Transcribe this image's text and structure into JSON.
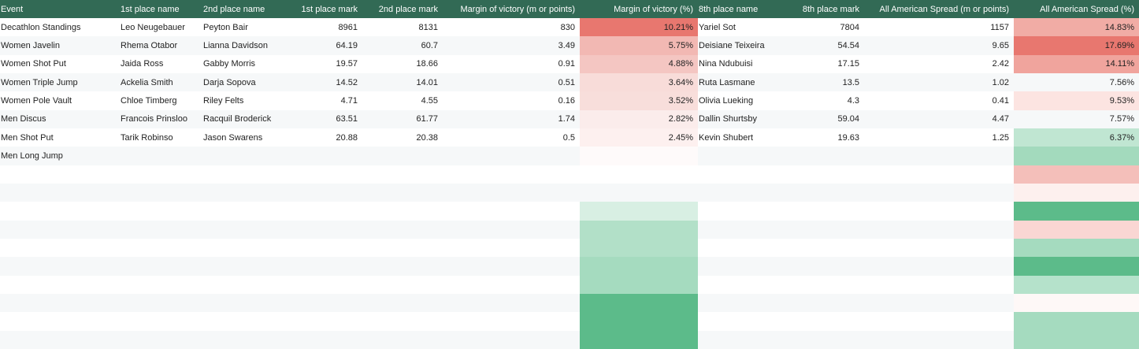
{
  "table": {
    "columns": [
      "Event",
      "1st place name",
      "2nd place name",
      "1st place mark",
      "2nd place mark",
      "Margin of victory (m or points)",
      "Margin of victory (%)",
      "8th place name",
      "8th place mark",
      "All American Spread (m or points)",
      "All American Spread (%)"
    ],
    "rows": [
      [
        "Decathlon Standings",
        "Leo Neugebauer",
        "Peyton Bair",
        "8961",
        "8131",
        "830",
        "10.21%",
        "Yariel Sot",
        "7804",
        "1157",
        "14.83%"
      ],
      [
        "Women Javelin",
        "Rhema Otabor",
        "Lianna Davidson",
        "64.19",
        "60.7",
        "3.49",
        "5.75%",
        "Deisiane Teixeira",
        "54.54",
        "9.65",
        "17.69%"
      ],
      [
        "Women Shot Put",
        "Jaida Ross",
        "Gabby Morris",
        "19.57",
        "18.66",
        "0.91",
        "4.88%",
        "Nina Ndubuisi",
        "17.15",
        "2.42",
        "14.11%"
      ],
      [
        "Women Triple Jump",
        "Ackelia Smith",
        "Darja Sopova",
        "14.52",
        "14.01",
        "0.51",
        "3.64%",
        "Ruta Lasmane",
        "13.5",
        "1.02",
        "7.56%"
      ],
      [
        "Women Pole Vault",
        "Chloe Timberg",
        "Riley Felts",
        "4.71",
        "4.55",
        "0.16",
        "3.52%",
        "Olivia Lueking",
        "4.3",
        "0.41",
        "9.53%"
      ],
      [
        "Men Discus",
        "Francois Prinsloo",
        "Racquil Broderick",
        "63.51",
        "61.77",
        "1.74",
        "2.82%",
        "Dallin Shurtsby",
        "59.04",
        "4.47",
        "7.57%"
      ],
      [
        "Men Shot Put",
        "Tarik Robinso",
        "Jason Swarens",
        "20.88",
        "20.38",
        "0.5",
        "2.45%",
        "Kevin Shubert",
        "19.63",
        "1.25",
        "6.37%"
      ],
      [
        "Men Long Jump"
      ]
    ],
    "margin_pct_colors": [
      "#e8776f",
      "#f2b8b3",
      "#f4c6c2",
      "#f8dcd9",
      "#f8dedb",
      "#fbeceb",
      "#fdf0ef",
      "#fefafa",
      null,
      null,
      "#d8efe3",
      "#b2e0c8",
      "#b2e0c8",
      "#a5dbbf",
      "#a5dbbf",
      "#5cbb8a",
      "#5cbb8a",
      "#5cbb8a"
    ],
    "spread_pct_colors": [
      "#f1aca5",
      "#e8776f",
      "#f0a49d",
      null,
      "#fce4e1",
      null,
      "#c0e6d2",
      "#a3dabd",
      "#f4bfba",
      "#fdf0ee",
      "#5cbb8a",
      "#fad6d3",
      "#a5dbbf",
      "#5cbb8a",
      "#b5e2cb",
      "#fef8f7",
      "#a5dbbf",
      "#a5dbbf"
    ]
  }
}
